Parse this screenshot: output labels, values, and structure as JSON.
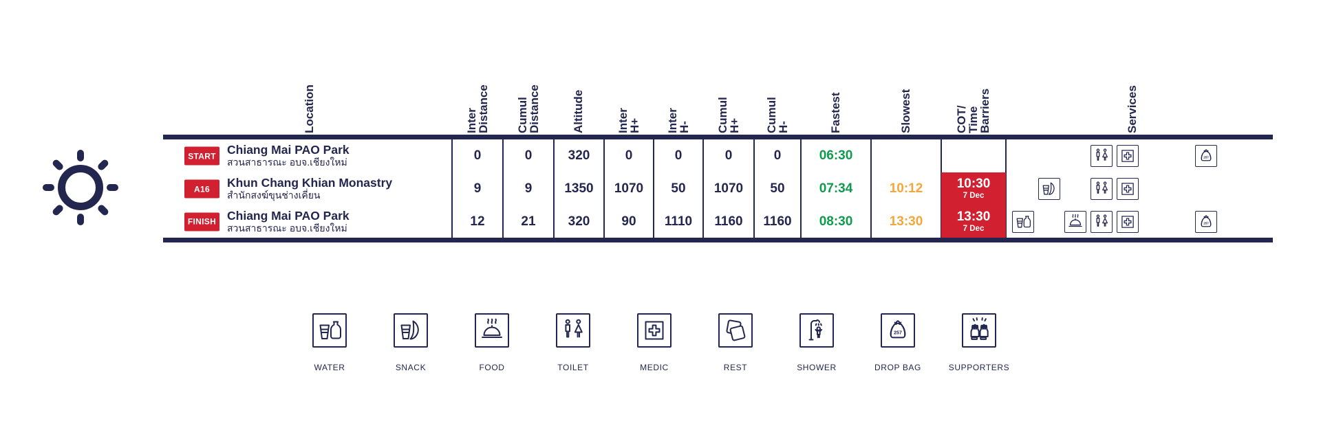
{
  "colors": {
    "navy": "#23264E",
    "red": "#D1202F",
    "green": "#0E9B4C",
    "orange": "#F3A73B",
    "background": "#FFFFFF"
  },
  "icons": {
    "left_graphic": "sun-icon",
    "dropbag_number": "257"
  },
  "table": {
    "headers": [
      {
        "id": "location",
        "text": "Location"
      },
      {
        "id": "inter_distance",
        "text": "Inter\nDistance"
      },
      {
        "id": "cumul_distance",
        "text": "Cumul\nDistance"
      },
      {
        "id": "altitude",
        "text": "Altitude"
      },
      {
        "id": "inter_h_plus",
        "text": "Inter\nH+"
      },
      {
        "id": "inter_h_minus",
        "text": "Inter\nH-"
      },
      {
        "id": "cumul_h_plus",
        "text": "Cumul\nH+"
      },
      {
        "id": "cumul_h_minus",
        "text": "Cumul\nH-"
      },
      {
        "id": "fastest",
        "text": "Fastest"
      },
      {
        "id": "slowest",
        "text": "Slowest"
      },
      {
        "id": "cot",
        "text": "COT/\nTime\nBarriers"
      },
      {
        "id": "services",
        "text": "Services"
      }
    ],
    "rows": [
      {
        "badge": "START",
        "name": "Chiang Mai PAO Park",
        "name_thai": "สวนสาธารณะ อบจ.เชียงใหม่",
        "inter_distance": "0",
        "cumul_distance": "0",
        "altitude": "320",
        "inter_h_plus": "0",
        "inter_h_minus": "0",
        "cumul_h_plus": "0",
        "cumul_h_minus": "0",
        "fastest": "06:30",
        "slowest": "",
        "cot_time": "",
        "cot_date": "",
        "services": [
          "toilet",
          "medic",
          "dropbag"
        ]
      },
      {
        "badge": "A16",
        "name": "Khun Chang Khian Monastry",
        "name_thai": "สำนักสงฆ์ขุนช่างเคี่ยน",
        "inter_distance": "9",
        "cumul_distance": "9",
        "altitude": "1350",
        "inter_h_plus": "1070",
        "inter_h_minus": "50",
        "cumul_h_plus": "1070",
        "cumul_h_minus": "50",
        "fastest": "07:34",
        "slowest": "10:12",
        "cot_time": "10:30",
        "cot_date": "7 Dec",
        "services": [
          "snack",
          "toilet",
          "medic"
        ]
      },
      {
        "badge": "FINISH",
        "name": "Chiang Mai PAO Park",
        "name_thai": "สวนสาธารณะ อบจ.เชียงใหม่",
        "inter_distance": "12",
        "cumul_distance": "21",
        "altitude": "320",
        "inter_h_plus": "90",
        "inter_h_minus": "1110",
        "cumul_h_plus": "1160",
        "cumul_h_minus": "1160",
        "fastest": "08:30",
        "slowest": "13:30",
        "cot_time": "13:30",
        "cot_date": "7 Dec",
        "services": [
          "water",
          "food",
          "toilet",
          "medic",
          "dropbag"
        ]
      }
    ]
  },
  "legend": [
    {
      "icon": "water",
      "label": "WATER"
    },
    {
      "icon": "snack",
      "label": "SNACK"
    },
    {
      "icon": "food",
      "label": "FOOD"
    },
    {
      "icon": "toilet",
      "label": "TOILET"
    },
    {
      "icon": "medic",
      "label": "MEDIC"
    },
    {
      "icon": "rest",
      "label": "REST"
    },
    {
      "icon": "shower",
      "label": "SHOWER"
    },
    {
      "icon": "dropbag",
      "label": "DROP BAG"
    },
    {
      "icon": "supporters",
      "label": "SUPPORTERS"
    }
  ]
}
